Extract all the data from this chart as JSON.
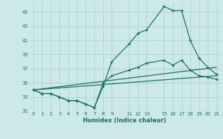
{
  "xlabel": "Humidex (Indice chaleur)",
  "bg_color": "#cce9e8",
  "grid_color": "#aed4d2",
  "line_color": "#1a6b6a",
  "xlim": [
    -0.5,
    21.5
  ],
  "ylim": [
    31,
    46.5
  ],
  "yticks": [
    31,
    33,
    35,
    37,
    39,
    41,
    43,
    45
  ],
  "xticks": [
    0,
    1,
    2,
    3,
    4,
    5,
    6,
    7,
    8,
    9,
    11,
    12,
    13,
    15,
    16,
    17,
    18,
    19,
    20,
    21
  ],
  "xtick_labels": [
    "0",
    "1",
    "2",
    "3",
    "4",
    "5",
    "6",
    "7",
    "8",
    "9",
    "11",
    "12",
    "13",
    "15",
    "16",
    "17",
    "18",
    "19",
    "20",
    "21"
  ],
  "series": [
    {
      "x": [
        0,
        1,
        2,
        3,
        4,
        5,
        6,
        7,
        8,
        9,
        11,
        12,
        13,
        15,
        16,
        17,
        18,
        19,
        20,
        21
      ],
      "y": [
        34.0,
        33.5,
        33.5,
        33.0,
        32.5,
        32.5,
        32.0,
        31.5,
        34.5,
        38.0,
        40.5,
        42.0,
        42.5,
        45.8,
        45.2,
        45.2,
        41.0,
        38.5,
        37.2,
        36.2
      ],
      "has_markers": true
    },
    {
      "x": [
        0,
        1,
        2,
        3,
        4,
        5,
        6,
        7,
        8,
        9,
        11,
        12,
        13,
        15,
        16,
        17,
        18,
        19,
        20,
        21
      ],
      "y": [
        34.0,
        33.5,
        33.5,
        33.0,
        32.5,
        32.5,
        32.0,
        31.5,
        35.0,
        36.0,
        36.8,
        37.2,
        37.8,
        38.2,
        37.5,
        38.2,
        36.8,
        36.0,
        35.8,
        35.5
      ],
      "has_markers": true
    },
    {
      "x": [
        0,
        21
      ],
      "y": [
        34.0,
        37.2
      ],
      "has_markers": false
    },
    {
      "x": [
        0,
        21
      ],
      "y": [
        34.0,
        36.0
      ],
      "has_markers": false
    }
  ]
}
